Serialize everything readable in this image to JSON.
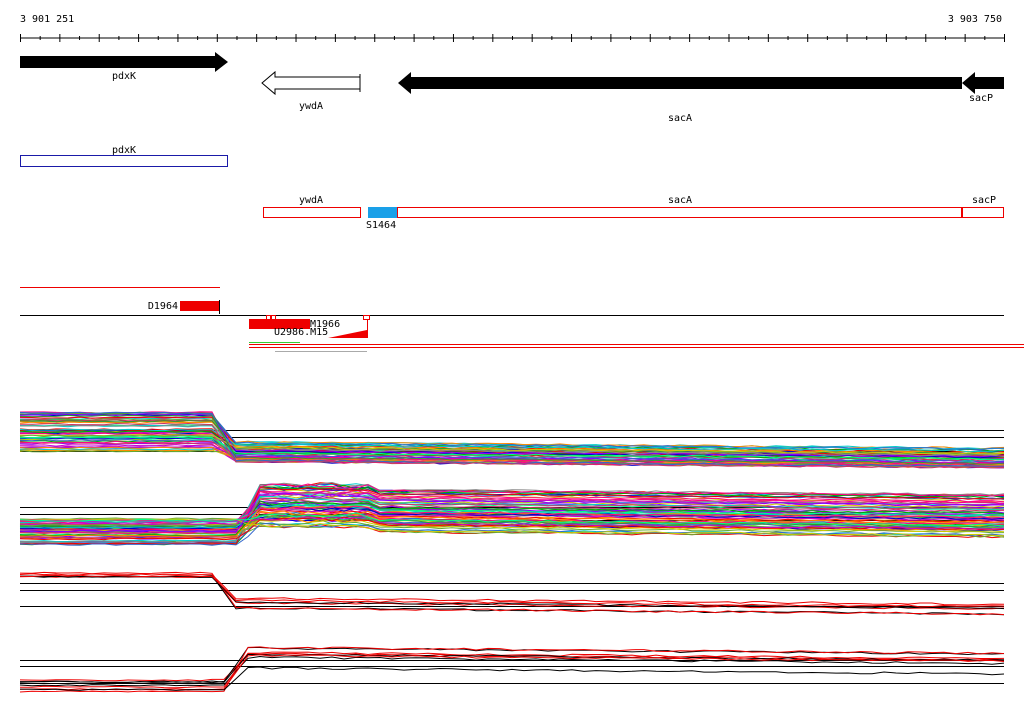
{
  "axis": {
    "start": "3 901 251",
    "end": "3 903 750"
  },
  "genes": [
    {
      "label": "pdxK"
    },
    {
      "label": "ywdA"
    },
    {
      "label": "sacA"
    },
    {
      "label": "sacP"
    }
  ],
  "annotations": [
    {
      "label": "pdxK"
    },
    {
      "label": "ywdA"
    },
    {
      "label": "sacA"
    },
    {
      "label": "sacP"
    },
    {
      "label": "S1464"
    }
  ],
  "features": [
    {
      "label": "D1964"
    },
    {
      "label": "M1966"
    },
    {
      "label": "U2986.M15"
    }
  ]
}
